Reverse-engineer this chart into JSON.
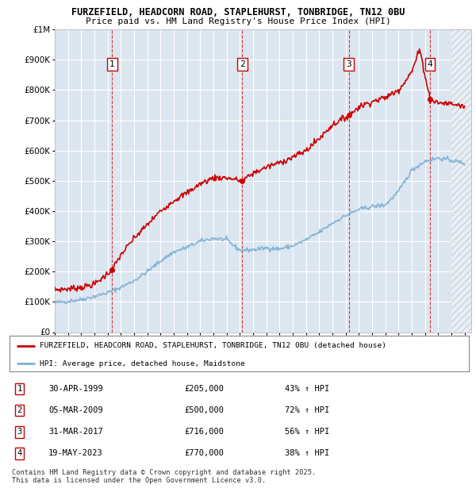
{
  "title_line1": "FURZEFIELD, HEADCORN ROAD, STAPLEHURST, TONBRIDGE, TN12 0BU",
  "title_line2": "Price paid vs. HM Land Registry's House Price Index (HPI)",
  "ylim": [
    0,
    1000000
  ],
  "yticks": [
    0,
    100000,
    200000,
    300000,
    400000,
    500000,
    600000,
    700000,
    800000,
    900000,
    1000000
  ],
  "xlim_start": 1995.0,
  "xlim_end": 2026.5,
  "chart_bg_color": "#dce6f1",
  "fig_bg_color": "#ffffff",
  "grid_color": "#ffffff",
  "legend_entries": [
    "FURZEFIELD, HEADCORN ROAD, STAPLEHURST, TONBRIDGE, TN12 0BU (detached house)",
    "HPI: Average price, detached house, Maidstone"
  ],
  "sale_points": [
    {
      "num": 1,
      "year": 1999.33,
      "price": 205000,
      "date": "30-APR-1999",
      "pct": "43%"
    },
    {
      "num": 2,
      "year": 2009.17,
      "price": 500000,
      "date": "05-MAR-2009",
      "pct": "72%"
    },
    {
      "num": 3,
      "year": 2017.25,
      "price": 716000,
      "date": "31-MAR-2017",
      "pct": "56%"
    },
    {
      "num": 4,
      "year": 2023.38,
      "price": 770000,
      "date": "19-MAY-2023",
      "pct": "38%"
    }
  ],
  "footnote_line1": "Contains HM Land Registry data © Crown copyright and database right 2025.",
  "footnote_line2": "This data is licensed under the Open Government Licence v3.0.",
  "red_line_color": "#cc0000",
  "blue_line_color": "#7bafd4",
  "hpi_anchors_x": [
    1995,
    1996,
    1997,
    1998,
    1999,
    2000,
    2001,
    2002,
    2003,
    2004,
    2005,
    2006,
    2007,
    2008,
    2009,
    2010,
    2011,
    2012,
    2013,
    2014,
    2015,
    2016,
    2017,
    2018,
    2019,
    2020,
    2021,
    2022,
    2023,
    2024,
    2025,
    2026
  ],
  "hpi_anchors_y": [
    97000,
    102000,
    108000,
    118000,
    130000,
    148000,
    170000,
    200000,
    235000,
    265000,
    280000,
    300000,
    310000,
    305000,
    270000,
    272000,
    278000,
    275000,
    285000,
    305000,
    330000,
    360000,
    385000,
    405000,
    415000,
    420000,
    465000,
    535000,
    565000,
    575000,
    568000,
    558000
  ],
  "prop_anchors_x": [
    1995,
    1996,
    1997,
    1998,
    1999.33,
    2000,
    2001,
    2002,
    2003,
    2004,
    2005,
    2006,
    2007,
    2008,
    2009.17,
    2010,
    2011,
    2012,
    2013,
    2014,
    2015,
    2016,
    2017.25,
    2018,
    2019,
    2020,
    2021,
    2022,
    2022.6,
    2023.38,
    2024,
    2025,
    2026
  ],
  "prop_anchors_y": [
    140000,
    143000,
    148000,
    158000,
    205000,
    255000,
    310000,
    355000,
    400000,
    435000,
    460000,
    490000,
    510000,
    510000,
    500000,
    525000,
    545000,
    560000,
    578000,
    600000,
    640000,
    685000,
    716000,
    745000,
    762000,
    775000,
    800000,
    860000,
    935000,
    770000,
    758000,
    755000,
    745000
  ],
  "hpi_noise_seed": 42,
  "prop_noise_seed": 7,
  "hpi_noise_scale": 3500,
  "prop_noise_scale": 5000,
  "n_points": 500
}
